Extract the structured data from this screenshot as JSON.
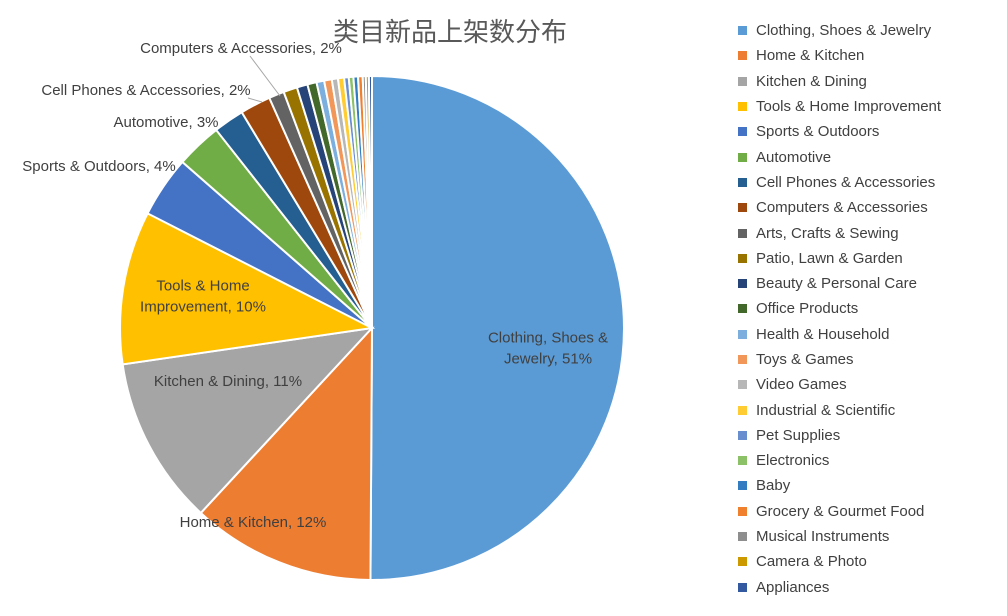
{
  "chart_data": {
    "type": "pie",
    "title": "类目新品上架数分布",
    "start_angle_deg": 0,
    "direction": "clockwise",
    "legend_position": "right",
    "slices": [
      {
        "name": "Clothing, Shoes & Jewelry",
        "value": 51,
        "color": "#5B9BD5",
        "label": "Clothing, Shoes & Jewelry, 51%"
      },
      {
        "name": "Home & Kitchen",
        "value": 12,
        "color": "#ED7D31",
        "label": "Home & Kitchen, 12%"
      },
      {
        "name": "Kitchen & Dining",
        "value": 11,
        "color": "#A5A5A5",
        "label": "Kitchen & Dining, 11%"
      },
      {
        "name": "Tools & Home Improvement",
        "value": 10,
        "color": "#FFC000",
        "label": "Tools & Home Improvement, 10%"
      },
      {
        "name": "Sports & Outdoors",
        "value": 4,
        "color": "#4472C4",
        "label": "Sports & Outdoors, 4%"
      },
      {
        "name": "Automotive",
        "value": 3,
        "color": "#70AD47",
        "label": "Automotive, 3%"
      },
      {
        "name": "Cell Phones & Accessories",
        "value": 2,
        "color": "#255E91",
        "label": "Cell Phones & Accessories, 2%"
      },
      {
        "name": "Computers & Accessories",
        "value": 2,
        "color": "#9E480E",
        "label": "Computers & Accessories, 2%"
      },
      {
        "name": "Arts, Crafts & Sewing",
        "value": 1,
        "color": "#636363",
        "label": ""
      },
      {
        "name": "Patio, Lawn & Garden",
        "value": 0.9,
        "color": "#997300",
        "label": ""
      },
      {
        "name": "Beauty & Personal Care",
        "value": 0.7,
        "color": "#264478",
        "label": ""
      },
      {
        "name": "Office Products",
        "value": 0.6,
        "color": "#43682B",
        "label": ""
      },
      {
        "name": "Health & Household",
        "value": 0.5,
        "color": "#7CAFDD",
        "label": ""
      },
      {
        "name": "Toys & Games",
        "value": 0.5,
        "color": "#F1975A",
        "label": ""
      },
      {
        "name": "Video Games",
        "value": 0.4,
        "color": "#B7B7B7",
        "label": ""
      },
      {
        "name": "Industrial & Scientific",
        "value": 0.4,
        "color": "#FFCD33",
        "label": ""
      },
      {
        "name": "Pet Supplies",
        "value": 0.3,
        "color": "#698ED0",
        "label": ""
      },
      {
        "name": "Electronics",
        "value": 0.3,
        "color": "#8CC168",
        "label": ""
      },
      {
        "name": "Baby",
        "value": 0.3,
        "color": "#327DC2",
        "label": ""
      },
      {
        "name": "Grocery & Gourmet Food",
        "value": 0.3,
        "color": "#F07F2E",
        "label": ""
      },
      {
        "name": "Musical Instruments",
        "value": 0.2,
        "color": "#8E8E8E",
        "label": ""
      },
      {
        "name": "Camera & Photo",
        "value": 0.2,
        "color": "#CC9A00",
        "label": ""
      },
      {
        "name": "Appliances",
        "value": 0.2,
        "color": "#335AA1",
        "label": ""
      }
    ]
  }
}
